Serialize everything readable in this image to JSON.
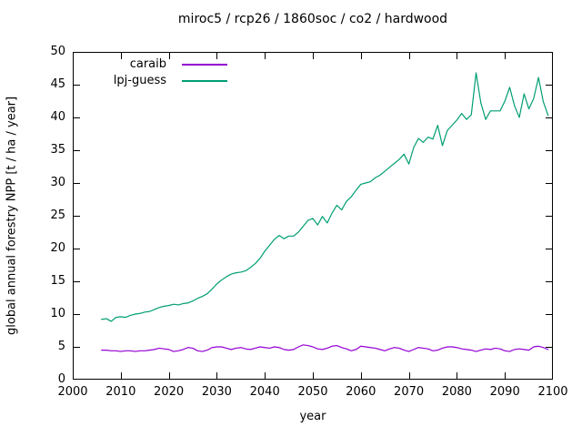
{
  "title": "miroc5 / rcp26 / 1860soc / co2 / hardwood",
  "axes": {
    "x_label": "year",
    "y_label": "global annual forestry NPP [t / ha / year]"
  },
  "legend": {
    "position": "top-left-inside",
    "entries": [
      {
        "label": "caraib",
        "color": "#9400d3"
      },
      {
        "label": "lpj-guess",
        "color": "#009e73"
      }
    ]
  },
  "colors": {
    "background": "#ffffff",
    "text": "#000000",
    "border": "#000000"
  },
  "chart_data": {
    "type": "line",
    "title": "miroc5 / rcp26 / 1860soc / co2 / hardwood",
    "xlabel": "year",
    "ylabel": "global annual forestry NPP [t / ha / year]",
    "xlim": [
      2000,
      2100
    ],
    "ylim": [
      0,
      50
    ],
    "x_ticks": [
      2000,
      2010,
      2020,
      2030,
      2040,
      2050,
      2060,
      2070,
      2080,
      2090,
      2100
    ],
    "y_ticks": [
      0,
      5,
      10,
      15,
      20,
      25,
      30,
      35,
      40,
      45,
      50
    ],
    "grid": false,
    "legend_position": "top-left-inside",
    "x_start": 2006,
    "x_step": 1,
    "series": [
      {
        "name": "caraib",
        "color": "#9400d3",
        "values": [
          4.5,
          4.5,
          4.4,
          4.4,
          4.3,
          4.4,
          4.4,
          4.3,
          4.4,
          4.4,
          4.5,
          4.6,
          4.8,
          4.7,
          4.6,
          4.3,
          4.4,
          4.6,
          4.9,
          4.8,
          4.4,
          4.3,
          4.5,
          4.9,
          5.0,
          5.0,
          4.8,
          4.6,
          4.8,
          4.9,
          4.7,
          4.6,
          4.8,
          5.0,
          4.9,
          4.8,
          5.0,
          4.9,
          4.6,
          4.5,
          4.6,
          5.0,
          5.3,
          5.2,
          5.0,
          4.7,
          4.6,
          4.8,
          5.1,
          5.2,
          4.9,
          4.7,
          4.4,
          4.6,
          5.1,
          5.0,
          4.9,
          4.8,
          4.6,
          4.4,
          4.7,
          4.9,
          4.8,
          4.5,
          4.3,
          4.6,
          4.9,
          4.8,
          4.7,
          4.4,
          4.5,
          4.8,
          5.0,
          5.0,
          4.9,
          4.7,
          4.6,
          4.5,
          4.3,
          4.5,
          4.7,
          4.6,
          4.8,
          4.7,
          4.4,
          4.3,
          4.6,
          4.7,
          4.6,
          4.5,
          5.0,
          5.1,
          4.9,
          4.6
        ]
      },
      {
        "name": "lpj-guess",
        "color": "#009e73",
        "values": [
          9.2,
          9.3,
          8.9,
          9.5,
          9.6,
          9.5,
          9.8,
          10.0,
          10.1,
          10.3,
          10.4,
          10.7,
          11.0,
          11.2,
          11.3,
          11.5,
          11.4,
          11.6,
          11.7,
          12.0,
          12.4,
          12.7,
          13.1,
          13.8,
          14.6,
          15.2,
          15.7,
          16.1,
          16.3,
          16.4,
          16.6,
          17.1,
          17.7,
          18.5,
          19.6,
          20.5,
          21.4,
          22.0,
          21.5,
          21.9,
          21.9,
          22.5,
          23.4,
          24.3,
          24.6,
          23.6,
          24.9,
          23.9,
          25.4,
          26.6,
          25.9,
          27.2,
          27.9,
          28.9,
          29.8,
          30.0,
          30.2,
          30.8,
          31.2,
          31.8,
          32.4,
          33.0,
          33.6,
          34.4,
          32.9,
          35.4,
          36.8,
          36.2,
          37.0,
          36.7,
          38.8,
          35.7,
          38.0,
          38.8,
          39.6,
          40.6,
          39.7,
          40.4,
          46.8,
          42.2,
          39.7,
          41.0,
          41.0,
          41.0,
          42.5,
          44.6,
          41.8,
          40.0,
          43.6,
          41.3,
          42.9,
          46.1,
          42.4,
          40.3
        ]
      }
    ]
  }
}
